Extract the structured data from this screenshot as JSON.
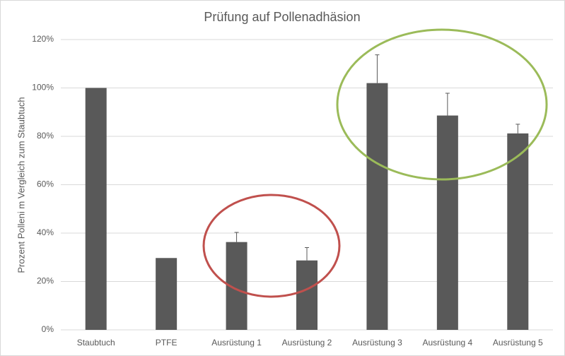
{
  "chart_data": {
    "type": "bar",
    "title": "Prüfung auf Pollenadhäsion",
    "y_label": "Prozent Polleni m Vergleich zum Staubtuch",
    "categories": [
      "Staubtuch",
      "PTFE",
      "Ausrüstung 1",
      "Ausrüstung 2",
      "Ausrüstung 3",
      "Ausrüstung 4",
      "Ausrüstung 5"
    ],
    "values": [
      100,
      29.7,
      36.3,
      28.7,
      102,
      88.6,
      81.2
    ],
    "errors": [
      null,
      null,
      4,
      5.3,
      11.7,
      9.2,
      3.8
    ],
    "color": "#595959",
    "ylim": [
      0,
      120
    ],
    "yticks": [
      {
        "value": 0,
        "label": "0%"
      },
      {
        "value": 20,
        "label": "20%"
      },
      {
        "value": 40,
        "label": "40%"
      },
      {
        "value": 60,
        "label": "60%"
      },
      {
        "value": 80,
        "label": "80%"
      },
      {
        "value": 100,
        "label": "100%"
      },
      {
        "value": 120,
        "label": "120%"
      }
    ],
    "grid": true
  }
}
